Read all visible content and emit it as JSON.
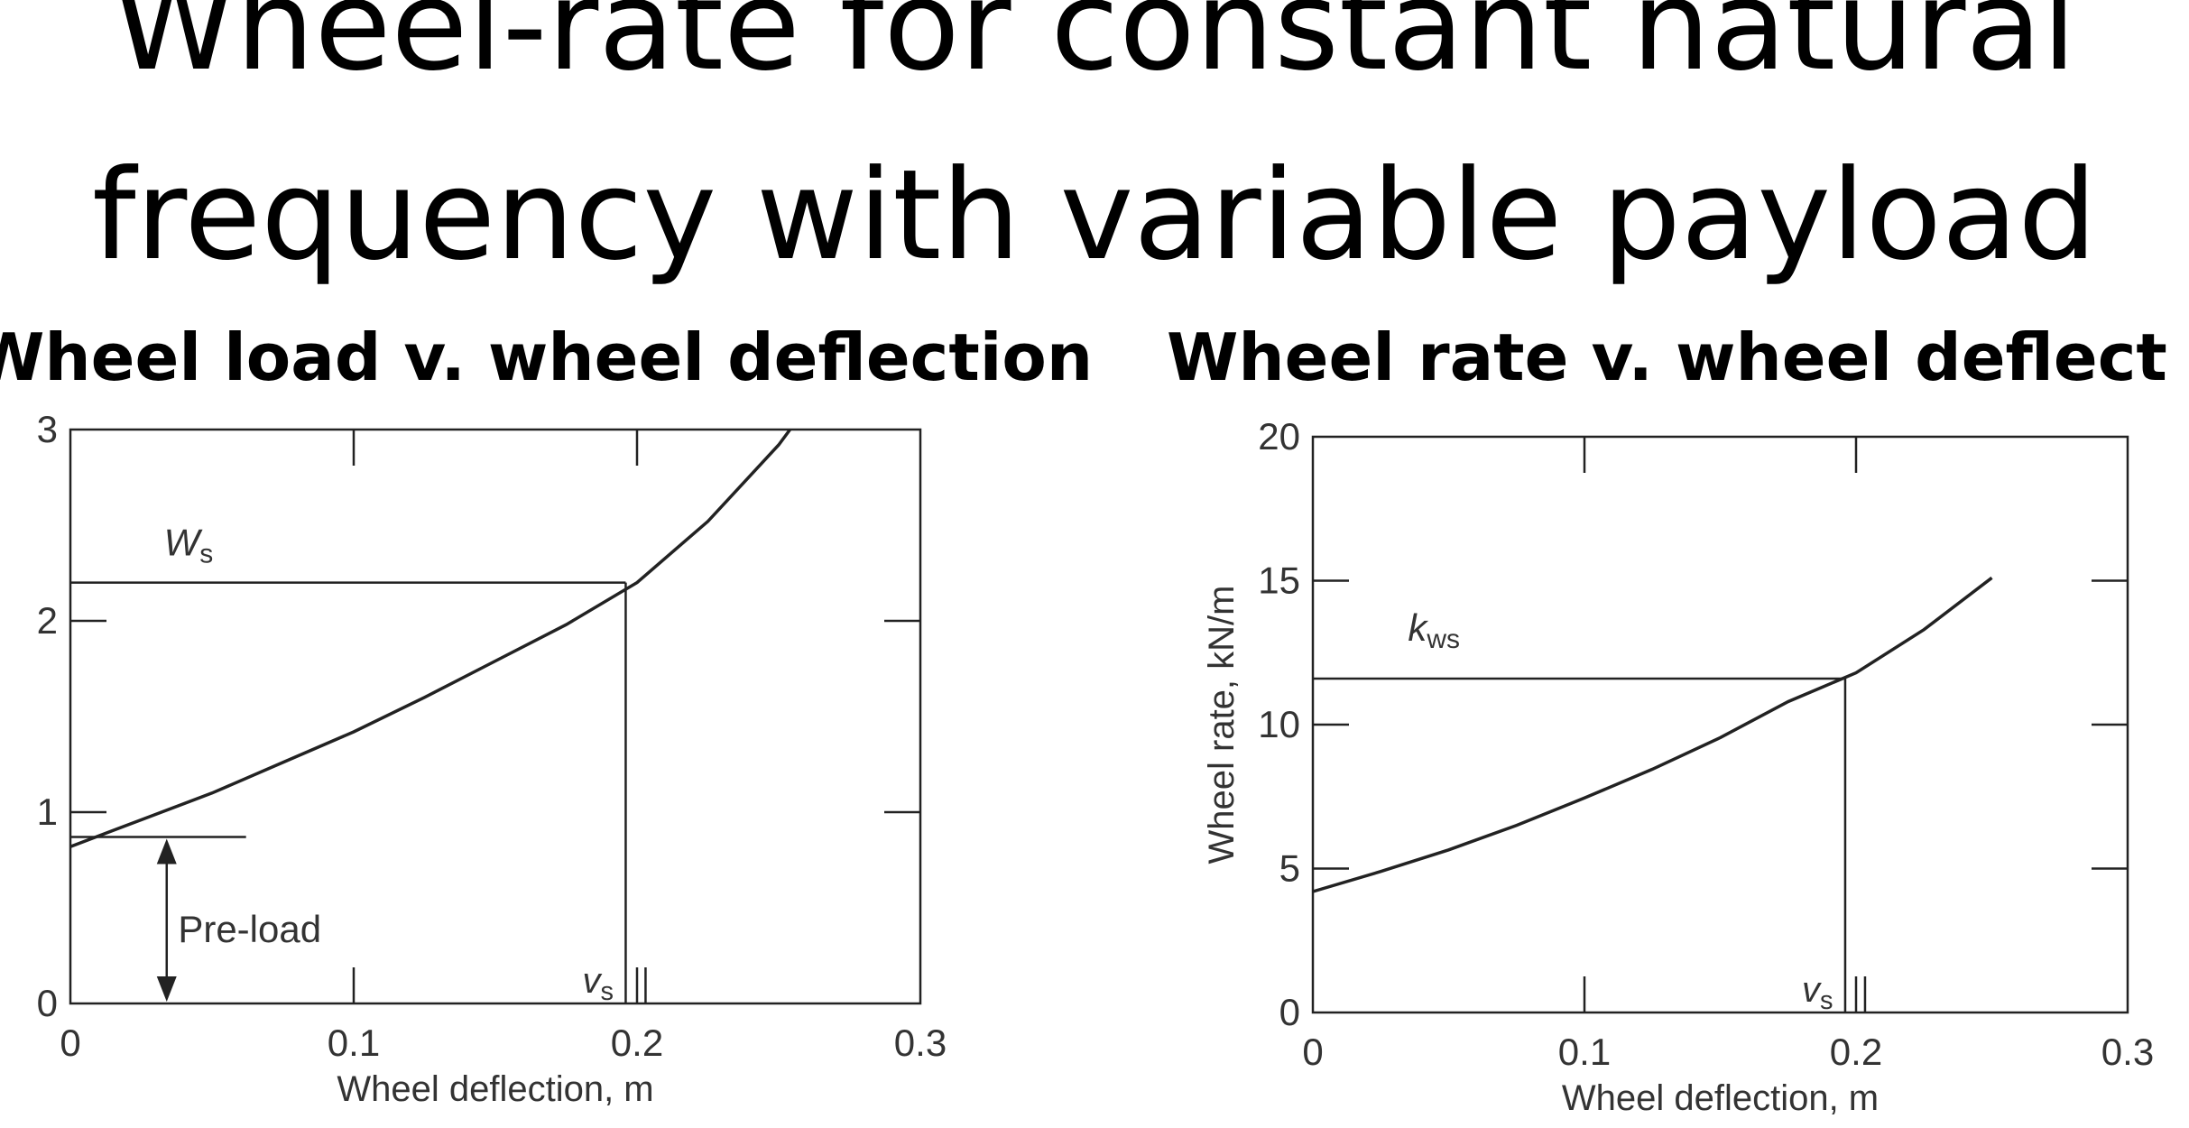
{
  "title_lines": [
    "Wheel-rate for constant natural",
    "frequency with variable payload"
  ],
  "chart_data": [
    {
      "type": "line",
      "title": "Wheel load v. wheel deflection",
      "xlabel": "Wheel deflection, m",
      "ylabel": "",
      "xlim": [
        0,
        0.3
      ],
      "ylim": [
        0,
        3
      ],
      "x_ticks": [
        0,
        0.1,
        0.2,
        0.3
      ],
      "x_tick_labels": [
        "0",
        "0.1",
        "0.2",
        "0.3"
      ],
      "y_ticks": [
        0,
        1,
        2,
        3
      ],
      "y_tick_labels": [
        "0",
        "1",
        "2",
        "3"
      ],
      "grid": false,
      "series": [
        {
          "x": [
            0,
            0.025,
            0.05,
            0.075,
            0.1,
            0.125,
            0.15,
            0.175,
            0.2,
            0.225,
            0.25,
            0.254
          ],
          "y": [
            0.82,
            0.96,
            1.1,
            1.26,
            1.42,
            1.6,
            1.79,
            1.98,
            2.2,
            2.52,
            2.92,
            3.0
          ]
        }
      ],
      "annotations": {
        "ref_x": 0.196,
        "ref_y": 2.2,
        "ws_label": "W",
        "ws_subscript": "s",
        "vs_label": "v",
        "vs_subscript": "s",
        "preload_label": "Pre-load",
        "preload_value": 0.87
      }
    },
    {
      "type": "line",
      "title": "Wheel rate v. wheel deflect",
      "xlabel": "Wheel deflection, m",
      "ylabel": "Wheel rate, kN/m",
      "xlim": [
        0,
        0.3
      ],
      "ylim": [
        0,
        20
      ],
      "x_ticks": [
        0,
        0.1,
        0.2,
        0.3
      ],
      "x_tick_labels": [
        "0",
        "0.1",
        "0.2",
        "0.3"
      ],
      "y_ticks": [
        0,
        5,
        10,
        15,
        20
      ],
      "y_tick_labels": [
        "0",
        "5",
        "10",
        "15",
        "20"
      ],
      "grid": false,
      "series": [
        {
          "x": [
            0,
            0.025,
            0.05,
            0.075,
            0.1,
            0.125,
            0.15,
            0.175,
            0.2,
            0.225,
            0.25
          ],
          "y": [
            4.2,
            4.9,
            5.65,
            6.5,
            7.45,
            8.45,
            9.55,
            10.8,
            11.8,
            13.3,
            15.1
          ]
        }
      ],
      "annotations": {
        "ref_x": 0.196,
        "ref_y": 11.6,
        "kws_label": "k",
        "kws_subscript": "ws",
        "vs_label": "v",
        "vs_subscript": "s"
      }
    }
  ]
}
